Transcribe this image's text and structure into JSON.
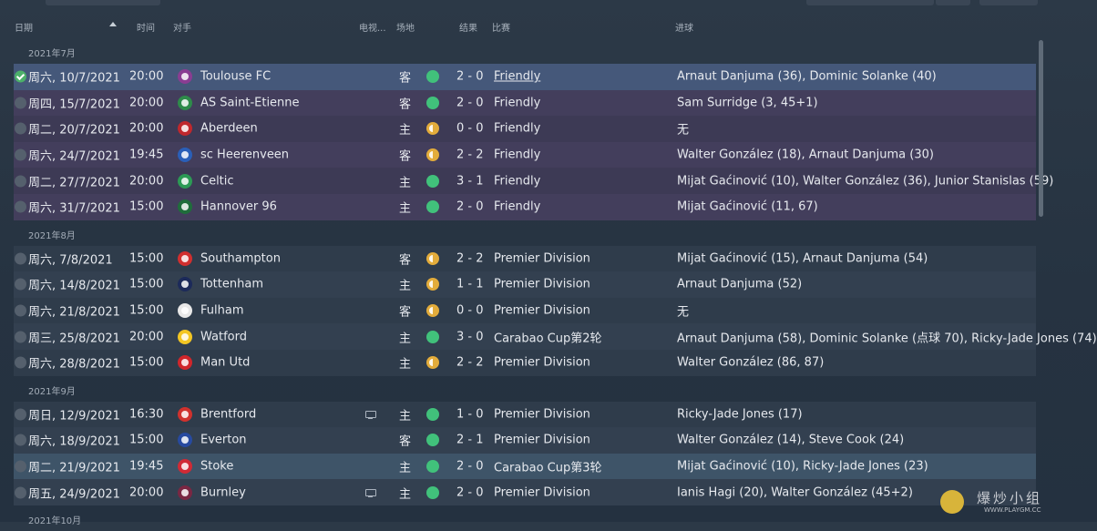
{
  "columns": {
    "date": "日期",
    "time": "时间",
    "opponent": "对手",
    "tv": "电视...",
    "venue": "场地",
    "result": "结果",
    "competition": "比赛",
    "scorers": "进球"
  },
  "groups": [
    {
      "label": "2021年7月",
      "matches": [
        {
          "date": "周六, 10/7/2021",
          "time": "20:00",
          "opponent": "Toulouse FC",
          "crest_color": "#8a3d92",
          "tv": false,
          "venue": "客",
          "outcome": "win",
          "score": "2 - 0",
          "competition": "Friendly",
          "scorers": "Arnaut Danjuma (36), Dominic Solanke (40)"
        },
        {
          "date": "周四, 15/7/2021",
          "time": "20:00",
          "opponent": "AS Saint-Etienne",
          "crest_color": "#2e8b4a",
          "tv": false,
          "venue": "客",
          "outcome": "win",
          "score": "2 - 0",
          "competition": "Friendly",
          "scorers": "Sam Surridge (3, 45+1)"
        },
        {
          "date": "周二, 20/7/2021",
          "time": "20:00",
          "opponent": "Aberdeen",
          "crest_color": "#c0282d",
          "tv": false,
          "venue": "主",
          "outcome": "draw",
          "score": "0 - 0",
          "competition": "Friendly",
          "scorers": "无"
        },
        {
          "date": "周六, 24/7/2021",
          "time": "19:45",
          "opponent": "sc Heerenveen",
          "crest_color": "#2a5fb8",
          "tv": false,
          "venue": "客",
          "outcome": "draw",
          "score": "2 - 2",
          "competition": "Friendly",
          "scorers": "Walter González (18), Arnaut Danjuma (30)"
        },
        {
          "date": "周二, 27/7/2021",
          "time": "20:00",
          "opponent": "Celtic",
          "crest_color": "#2c9a55",
          "tv": false,
          "venue": "主",
          "outcome": "win",
          "score": "3 - 1",
          "competition": "Friendly",
          "scorers": "Mijat Gaćinović (10), Walter González (36), Junior Stanislas (59)"
        },
        {
          "date": "周六, 31/7/2021",
          "time": "15:00",
          "opponent": "Hannover 96",
          "crest_color": "#1f6d3b",
          "tv": false,
          "venue": "主",
          "outcome": "win",
          "score": "2 - 0",
          "competition": "Friendly",
          "scorers": "Mijat Gaćinović (11, 67)"
        }
      ]
    },
    {
      "label": "2021年8月",
      "matches": [
        {
          "date": "周六, 7/8/2021",
          "time": "15:00",
          "opponent": "Southampton",
          "crest_color": "#d12f2f",
          "tv": false,
          "venue": "客",
          "outcome": "draw",
          "score": "2 - 2",
          "competition": "Premier Division",
          "scorers": "Mijat Gaćinović (15), Arnaut Danjuma (54)"
        },
        {
          "date": "周六, 14/8/2021",
          "time": "15:00",
          "opponent": "Tottenham",
          "crest_color": "#1c2a5a",
          "tv": false,
          "venue": "主",
          "outcome": "draw",
          "score": "1 - 1",
          "competition": "Premier Division",
          "scorers": "Arnaut Danjuma (52)"
        },
        {
          "date": "周六, 21/8/2021",
          "time": "15:00",
          "opponent": "Fulham",
          "crest_color": "#e8e8e8",
          "tv": false,
          "venue": "客",
          "outcome": "draw",
          "score": "0 - 0",
          "competition": "Premier Division",
          "scorers": "无"
        },
        {
          "date": "周三, 25/8/2021",
          "time": "20:00",
          "opponent": "Watford",
          "crest_color": "#f3c623",
          "tv": false,
          "venue": "主",
          "outcome": "win",
          "score": "3 - 0",
          "competition": "Carabao Cup第2轮",
          "scorers": "Arnaut Danjuma (58), Dominic Solanke (点球 70), Ricky-Jade Jones (74)"
        },
        {
          "date": "周六, 28/8/2021",
          "time": "15:00",
          "opponent": "Man Utd",
          "crest_color": "#d0262b",
          "tv": false,
          "venue": "主",
          "outcome": "draw",
          "score": "2 - 2",
          "competition": "Premier Division",
          "scorers": "Walter González (86, 87)"
        }
      ]
    },
    {
      "label": "2021年9月",
      "matches": [
        {
          "date": "周日, 12/9/2021",
          "time": "16:30",
          "opponent": "Brentford",
          "crest_color": "#d0312d",
          "tv": true,
          "venue": "主",
          "outcome": "win",
          "score": "1 - 0",
          "competition": "Premier Division",
          "scorers": "Ricky-Jade Jones (17)"
        },
        {
          "date": "周六, 18/9/2021",
          "time": "15:00",
          "opponent": "Everton",
          "crest_color": "#274aa0",
          "tv": false,
          "venue": "客",
          "outcome": "win",
          "score": "2 - 1",
          "competition": "Premier Division",
          "scorers": "Walter González (14), Steve Cook (24)"
        },
        {
          "date": "周二, 21/9/2021",
          "time": "19:45",
          "opponent": "Stoke",
          "crest_color": "#d12a35",
          "tv": false,
          "venue": "主",
          "outcome": "win",
          "score": "2 - 0",
          "competition": "Carabao Cup第3轮",
          "scorers": "Mijat Gaćinović (10), Ricky-Jade Jones (23)"
        },
        {
          "date": "周五, 24/9/2021",
          "time": "20:00",
          "opponent": "Burnley",
          "crest_color": "#7a2743",
          "tv": true,
          "venue": "主",
          "outcome": "win",
          "score": "2 - 0",
          "competition": "Premier Division",
          "scorers": "Ianis Hagi (20), Walter González (45+2)"
        }
      ]
    },
    {
      "label": "2021年10月",
      "matches": []
    }
  ],
  "watermark": {
    "title": "爆炒小组",
    "url": "WWW.PLAYGM.CC"
  }
}
